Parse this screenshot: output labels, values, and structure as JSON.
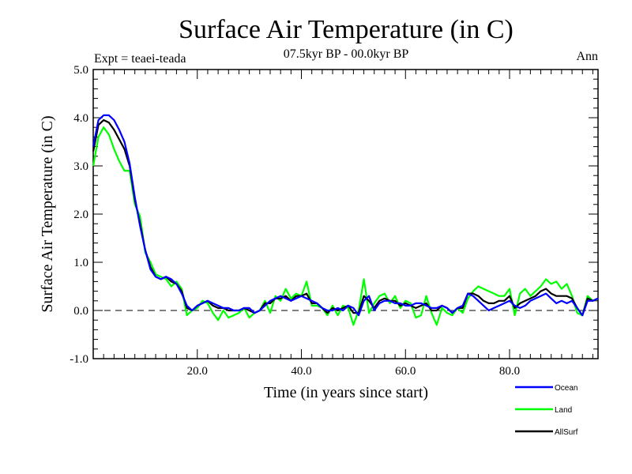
{
  "chart_data": {
    "type": "line",
    "title": "Surface Air Temperature (in C)",
    "subtitle": "07.5kyr BP - 00.0kyr BP",
    "left_label": "Expt = teaei-teada",
    "right_label": "Ann",
    "xlabel": "Time (in years since start)",
    "ylabel": "Surface Air Temperature (in C)",
    "xlim": [
      0,
      97
    ],
    "ylim": [
      -1.0,
      5.0
    ],
    "xticks": [
      20.0,
      40.0,
      60.0,
      80.0
    ],
    "xtick_labels": [
      "20.0",
      "40.0",
      "60.0",
      "80.0"
    ],
    "yticks": [
      -1.0,
      0.0,
      1.0,
      2.0,
      3.0,
      4.0,
      5.0
    ],
    "ytick_labels": [
      "-1.0",
      "0.0",
      "1.0",
      "2.0",
      "3.0",
      "4.0",
      "5.0"
    ],
    "reference_line": 0.0,
    "legend_position": "bottom-right",
    "colors": {
      "Ocean": "#0000ff",
      "Land": "#00ff00",
      "AllSurf": "#000000",
      "axes": "#000000"
    },
    "x": [
      0,
      1,
      2,
      3,
      4,
      5,
      6,
      7,
      8,
      9,
      10,
      11,
      12,
      13,
      14,
      15,
      16,
      17,
      18,
      19,
      20,
      21,
      22,
      23,
      24,
      25,
      26,
      27,
      28,
      29,
      30,
      31,
      32,
      33,
      34,
      35,
      36,
      37,
      38,
      39,
      40,
      41,
      42,
      43,
      44,
      45,
      46,
      47,
      48,
      49,
      50,
      51,
      52,
      53,
      54,
      55,
      56,
      57,
      58,
      59,
      60,
      61,
      62,
      63,
      64,
      65,
      66,
      67,
      68,
      69,
      70,
      71,
      72,
      73,
      74,
      75,
      76,
      77,
      78,
      79,
      80,
      81,
      82,
      83,
      84,
      85,
      86,
      87,
      88,
      89,
      90,
      91,
      92,
      93,
      94,
      95,
      96,
      97
    ],
    "series": [
      {
        "name": "Ocean",
        "values": [
          3.4,
          3.95,
          4.05,
          4.05,
          3.95,
          3.75,
          3.5,
          3.05,
          2.35,
          1.75,
          1.25,
          0.85,
          0.7,
          0.65,
          0.7,
          0.65,
          0.55,
          0.35,
          0.1,
          0.0,
          0.1,
          0.15,
          0.2,
          0.15,
          0.1,
          0.05,
          0.05,
          0.0,
          0.0,
          0.05,
          0.05,
          -0.05,
          0.0,
          0.1,
          0.2,
          0.25,
          0.3,
          0.25,
          0.2,
          0.25,
          0.3,
          0.25,
          0.2,
          0.15,
          0.05,
          0.0,
          0.0,
          0.05,
          0.0,
          0.1,
          0.05,
          -0.1,
          0.2,
          0.3,
          0.0,
          0.15,
          0.2,
          0.2,
          0.15,
          0.15,
          0.1,
          0.1,
          0.15,
          0.15,
          0.1,
          0.05,
          0.05,
          0.1,
          0.05,
          -0.05,
          0.05,
          0.1,
          0.35,
          0.3,
          0.2,
          0.1,
          0.0,
          0.05,
          0.1,
          0.15,
          0.2,
          0.1,
          0.05,
          0.1,
          0.2,
          0.25,
          0.3,
          0.35,
          0.25,
          0.15,
          0.2,
          0.15,
          0.2,
          0.05,
          -0.1,
          0.2,
          0.2,
          0.25
        ]
      },
      {
        "name": "Land",
        "values": [
          3.0,
          3.6,
          3.8,
          3.65,
          3.35,
          3.1,
          2.9,
          2.9,
          2.2,
          1.95,
          1.2,
          1.0,
          0.75,
          0.7,
          0.65,
          0.5,
          0.6,
          0.45,
          -0.1,
          0.0,
          0.05,
          0.2,
          0.15,
          -0.05,
          -0.2,
          0.0,
          -0.15,
          -0.1,
          -0.05,
          0.05,
          -0.15,
          -0.05,
          0.0,
          0.2,
          -0.05,
          0.3,
          0.2,
          0.45,
          0.25,
          0.35,
          0.3,
          0.6,
          0.1,
          0.1,
          0.05,
          -0.1,
          0.1,
          -0.1,
          0.1,
          0.05,
          -0.3,
          0.0,
          0.65,
          -0.05,
          0.15,
          0.3,
          0.35,
          0.15,
          0.3,
          0.05,
          0.2,
          0.15,
          -0.15,
          -0.1,
          0.3,
          -0.05,
          -0.3,
          0.05,
          -0.05,
          -0.1,
          0.05,
          -0.05,
          0.25,
          0.4,
          0.5,
          0.45,
          0.4,
          0.35,
          0.3,
          0.3,
          0.45,
          -0.1,
          0.35,
          0.45,
          0.3,
          0.4,
          0.5,
          0.65,
          0.55,
          0.6,
          0.45,
          0.55,
          0.3,
          -0.05,
          -0.1,
          0.3,
          0.2,
          0.25
        ]
      },
      {
        "name": "AllSurf",
        "values": [
          3.3,
          3.85,
          3.95,
          3.9,
          3.75,
          3.55,
          3.35,
          3.0,
          2.3,
          1.8,
          1.25,
          0.9,
          0.7,
          0.65,
          0.7,
          0.6,
          0.55,
          0.4,
          0.05,
          0.0,
          0.1,
          0.15,
          0.2,
          0.1,
          0.05,
          0.05,
          0.0,
          0.0,
          0.0,
          0.05,
          0.0,
          -0.05,
          0.0,
          0.15,
          0.15,
          0.25,
          0.25,
          0.3,
          0.2,
          0.3,
          0.3,
          0.35,
          0.15,
          0.15,
          0.05,
          -0.05,
          0.05,
          0.0,
          0.05,
          0.1,
          -0.05,
          -0.05,
          0.3,
          0.2,
          0.05,
          0.2,
          0.25,
          0.2,
          0.2,
          0.1,
          0.15,
          0.1,
          0.05,
          0.1,
          0.15,
          0.0,
          0.0,
          0.1,
          0.05,
          -0.05,
          0.05,
          0.05,
          0.35,
          0.35,
          0.3,
          0.2,
          0.15,
          0.15,
          0.2,
          0.2,
          0.3,
          0.05,
          0.15,
          0.2,
          0.25,
          0.3,
          0.4,
          0.45,
          0.35,
          0.3,
          0.3,
          0.3,
          0.25,
          0.05,
          -0.1,
          0.25,
          0.2,
          0.25
        ]
      }
    ]
  }
}
